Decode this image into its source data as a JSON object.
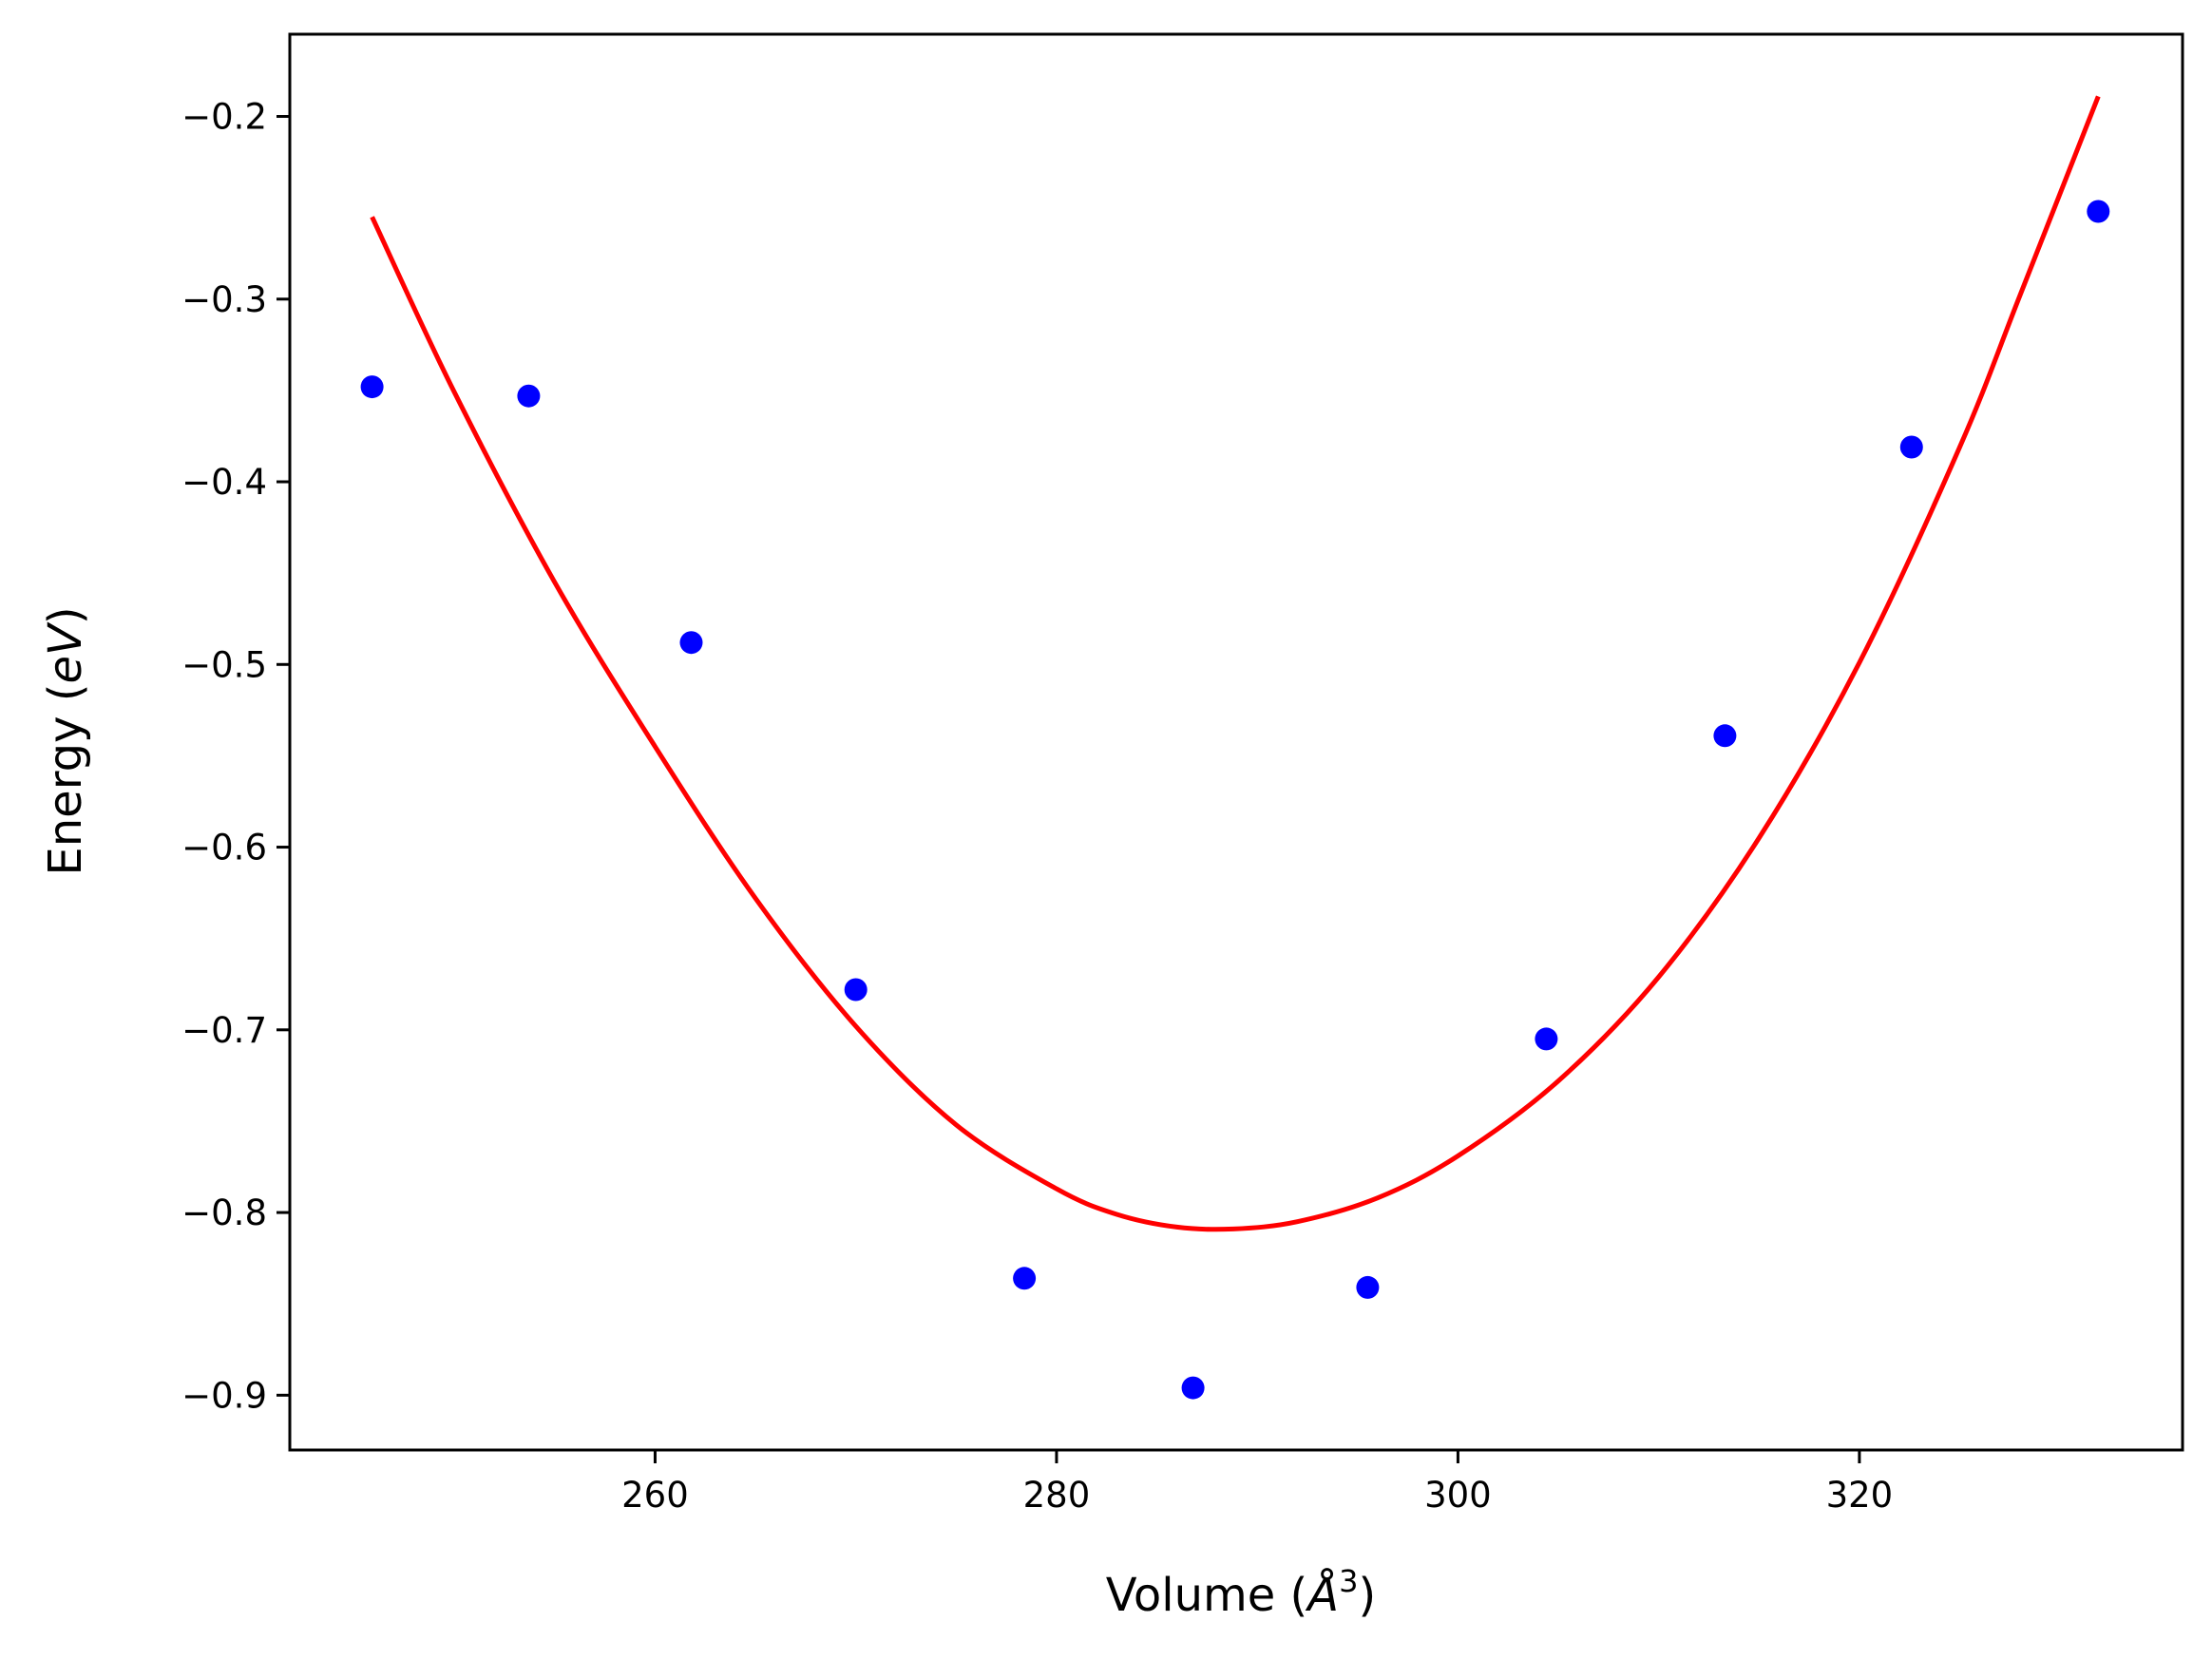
{
  "chart_data": {
    "type": "scatter",
    "xlabel": {
      "prefix": "Volume (",
      "unit": "Å",
      "exponent": "3",
      "suffix": ")"
    },
    "ylabel": {
      "prefix": "Energy (",
      "unit": "eV",
      "suffix": ")"
    },
    "xlim": [
      241.8,
      336.1
    ],
    "ylim": [
      -0.93,
      -0.155
    ],
    "xticks": [
      260,
      280,
      300,
      320
    ],
    "xtick_labels": [
      "260",
      "280",
      "300",
      "320"
    ],
    "yticks": [
      -0.9,
      -0.8,
      -0.7,
      -0.6,
      -0.5,
      -0.4,
      -0.3,
      -0.2
    ],
    "ytick_labels": [
      "−0.9",
      "−0.8",
      "−0.7",
      "−0.6",
      "−0.5",
      "−0.4",
      "−0.3",
      "−0.2"
    ],
    "grid": false,
    "series": [
      {
        "kind": "points",
        "color": "#0000ff",
        "x": [
          245.9,
          253.7,
          261.8,
          270.0,
          278.4,
          286.8,
          295.5,
          304.4,
          313.3,
          322.6,
          331.9
        ],
        "y": [
          -0.348,
          -0.353,
          -0.488,
          -0.678,
          -0.836,
          -0.896,
          -0.841,
          -0.705,
          -0.539,
          -0.381,
          -0.252
        ]
      },
      {
        "kind": "line",
        "color": "#ff0000",
        "x": [
          245.9,
          250.0,
          255.0,
          260.0,
          265.0,
          270.0,
          275.0,
          280.0,
          283.0,
          286.0,
          288.8,
          292.0,
          296.0,
          300.0,
          305.0,
          310.0,
          315.0,
          320.0,
          325.0,
          328.0,
          331.9
        ],
        "y": [
          -0.255,
          -0.351,
          -0.455,
          -0.545,
          -0.628,
          -0.698,
          -0.752,
          -0.787,
          -0.801,
          -0.808,
          -0.809,
          -0.805,
          -0.792,
          -0.769,
          -0.728,
          -0.671,
          -0.595,
          -0.499,
          -0.381,
          -0.298,
          -0.189
        ]
      }
    ]
  }
}
